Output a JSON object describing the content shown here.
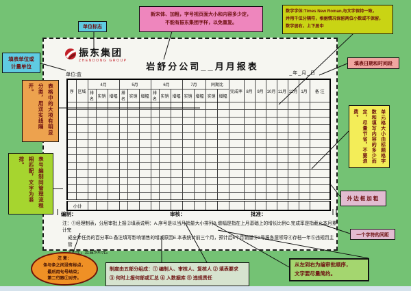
{
  "colors": {
    "background": "#74c274",
    "sheet": "#f6f6f1",
    "cyan_box": "#5fcbe2",
    "pink_box": "#ee86bd",
    "lime_box": "#c9d414",
    "orange_box": "#eda24e",
    "green_box": "#a6d52f",
    "salmon_box": "#f0a6a0",
    "yellow_box": "#f3ed58",
    "pale_pink_box": "#e2bcd1",
    "notice_ellipse": "#ef9025",
    "order_box": "#a4d66f",
    "logo_red": "#c22028"
  },
  "callouts": {
    "unit_logo_label": "单位标志",
    "fill_unit": {
      "line1": "填表单位或",
      "line2": "计量单位"
    },
    "title_font": {
      "line1": "新宋体、加粗，字号视页面大小和内容多少定，",
      "line2": "不能有振东集团字样，以免重复。"
    },
    "number_font": {
      "line1": "数字字体:Times New Roman,与文字保持一致，",
      "line2": "并用千位分隔符，根据情况保留两位小数或不保留，",
      "line3": "数字居右，上下居中"
    },
    "date_range": "填表日期和时间段",
    "sections": "表格中的大项有明显分类，用双实线隔开。",
    "table_number": "表号编制同管理流程相匹配，文字为竖排。",
    "cell_size": "单元格大小由标题格字数和填写内容的多少而定，尽量节省，不要浪费。",
    "outer_border": "外边框加粗",
    "char_spacing": "一个字符的间距",
    "notice": {
      "title": "注 意：",
      "line1": "条与条之间没有标点，",
      "line2": "最后用句号结束；",
      "line3": "第二行跟①对齐。"
    },
    "system": {
      "line1": "制度由五部分组成：① 编制人、审核人、复核人 ② 填表要求",
      "line2": "③ 何时上报何部或汇总 ④ 入数据库 ⑤ 违规责任"
    },
    "order": {
      "line1": "从左到右为编审批顺序，",
      "line2": "文字要尽量简约。"
    }
  },
  "form": {
    "logo_cn": "振东集团",
    "logo_en": "ZHENDONG GROUP",
    "title": "岩舒分公司__月月报表",
    "unit_label": "单位:盒",
    "date_label": "_年_月_日",
    "table_no": "B33(1200)",
    "table": {
      "col_groups": [
        {
          "label": "序",
          "cols": 1,
          "full": true
        },
        {
          "label": "区域",
          "cols": 1,
          "full": true
        },
        {
          "label": "4月",
          "cols": 3
        },
        {
          "label": "5月",
          "cols": 3
        },
        {
          "label": "6月",
          "cols": 3
        },
        {
          "label": "7月",
          "cols": 2
        },
        {
          "label": "同期比",
          "cols": 2
        },
        {
          "label": "完成率",
          "cols": 1,
          "full": true
        },
        {
          "label": "8月",
          "cols": 1,
          "full": true
        },
        {
          "label": "9月",
          "cols": 1,
          "full": true
        },
        {
          "label": "10月",
          "cols": 1,
          "full": true
        },
        {
          "label": "11月",
          "cols": 1,
          "full": true
        },
        {
          "label": "12月",
          "cols": 1,
          "full": true
        },
        {
          "label": "1月",
          "cols": 1,
          "full": true
        },
        {
          "label": "备 注",
          "cols": 1,
          "full": true
        }
      ],
      "sub_headers": [
        "排名",
        "实销",
        "增幅",
        "排名",
        "实销",
        "增幅",
        "排名",
        "实销",
        "增幅",
        "实销",
        "增幅",
        "实销",
        "增幅"
      ],
      "empty_rows": 13,
      "subtotal_label": "小计"
    },
    "signoff": {
      "prepare": "编制：",
      "review": "审核：",
      "approve": "批准："
    },
    "note_lines": [
      "注：①经理制表，分层审批上报②填表说明：A.序号是以当月销量大小排列B.增幅是指在上月基础上的增长比例C.完成率是指截止本月累计完",
      "成全年任务的百分率D.备注填写影响销售的增减原因E.本表统计前三个月，预计后6个月销量③3号报各层领导④存档一年⑤违规罚主管",
      "200元，总监500元。"
    ]
  }
}
